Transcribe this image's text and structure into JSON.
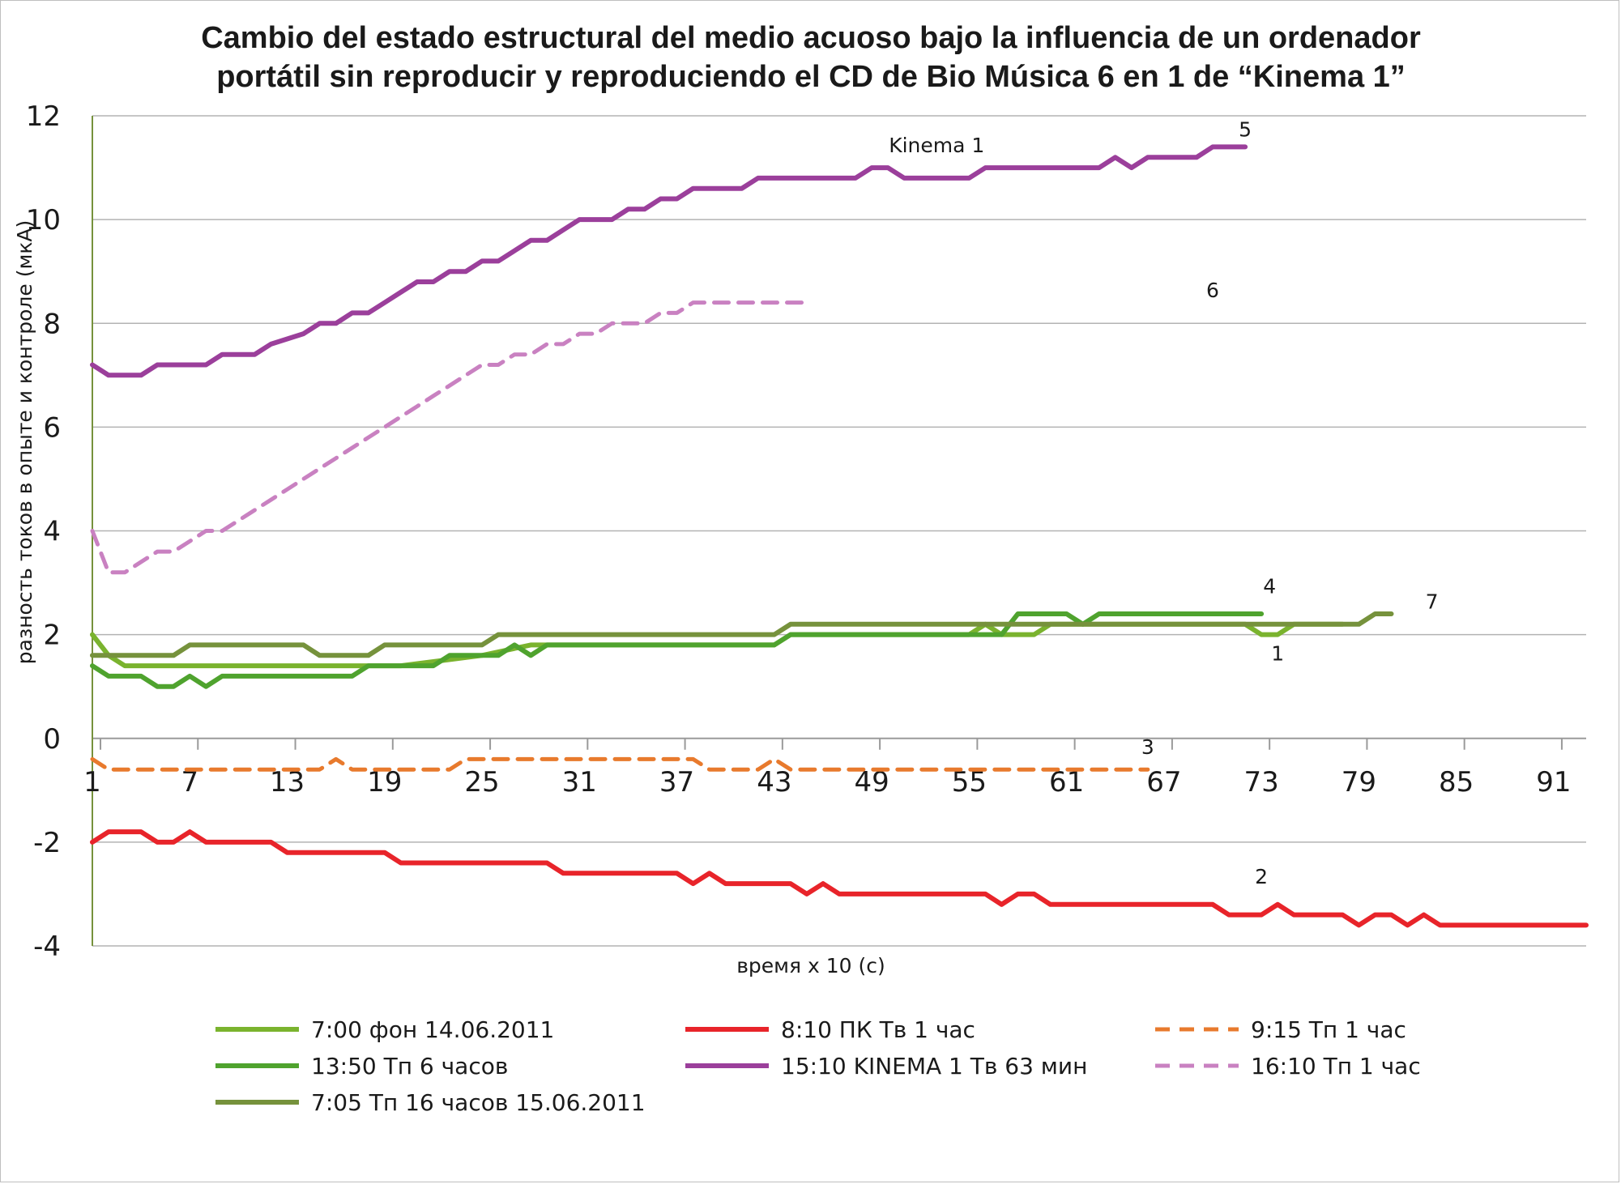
{
  "chart_data": {
    "type": "line",
    "title": "Cambio del estado estructural del medio acuoso bajo la influencia de un ordenador",
    "title_line2": "portátil sin reproducir y reproduciendo el CD de Bio Música 6 en 1 de “Kinema 1”",
    "xlabel": "время х 10 (с)",
    "ylabel": "разность токов в опыте и контроле (мкА)",
    "x_range": [
      1,
      93
    ],
    "x_ticks": [
      "1",
      "7",
      "13",
      "19",
      "25",
      "31",
      "37",
      "43",
      "49",
      "55",
      "61",
      "67",
      "73",
      "79",
      "85",
      "91"
    ],
    "y_range": [
      -4,
      12
    ],
    "y_ticks": [
      "12",
      "10",
      "8",
      "6",
      "4",
      "2",
      "0",
      "-2",
      "-4"
    ],
    "gridlines": true,
    "legend_position": "bottom",
    "series": [
      {
        "name": "7:00 фон 14.06.2011",
        "color": "#7ab32e",
        "dash": "solid",
        "points": [
          [
            1,
            2.0
          ],
          [
            2,
            1.6
          ],
          [
            3,
            1.4
          ],
          [
            5,
            1.4
          ],
          [
            10,
            1.4
          ],
          [
            20,
            1.4
          ],
          [
            25,
            1.6
          ],
          [
            28,
            1.8
          ],
          [
            30,
            1.8
          ],
          [
            35,
            1.8
          ],
          [
            43,
            1.8
          ],
          [
            44,
            2.0
          ],
          [
            50,
            2.0
          ],
          [
            55,
            2.0
          ],
          [
            56,
            2.2
          ],
          [
            57,
            2.0
          ],
          [
            59,
            2.0
          ],
          [
            60,
            2.2
          ],
          [
            70,
            2.2
          ],
          [
            72,
            2.2
          ],
          [
            73,
            2.0
          ],
          [
            74,
            2.0
          ],
          [
            75,
            2.2
          ],
          [
            78,
            2.2
          ]
        ]
      },
      {
        "name": "8:10 ПК Тв 1 час",
        "color": "#e8242a",
        "dash": "solid",
        "points": [
          [
            1,
            -2.0
          ],
          [
            2,
            -1.8
          ],
          [
            3,
            -1.8
          ],
          [
            4,
            -1.8
          ],
          [
            5,
            -2.0
          ],
          [
            6,
            -2.0
          ],
          [
            7,
            -1.8
          ],
          [
            8,
            -2.0
          ],
          [
            12,
            -2.0
          ],
          [
            13,
            -2.2
          ],
          [
            19,
            -2.2
          ],
          [
            20,
            -2.4
          ],
          [
            29,
            -2.4
          ],
          [
            30,
            -2.6
          ],
          [
            37,
            -2.6
          ],
          [
            38,
            -2.8
          ],
          [
            39,
            -2.6
          ],
          [
            40,
            -2.8
          ],
          [
            44,
            -2.8
          ],
          [
            45,
            -3.0
          ],
          [
            46,
            -2.8
          ],
          [
            47,
            -3.0
          ],
          [
            50,
            -3.0
          ],
          [
            56,
            -3.0
          ],
          [
            57,
            -3.2
          ],
          [
            58,
            -3.0
          ],
          [
            59,
            -3.0
          ],
          [
            60,
            -3.2
          ],
          [
            70,
            -3.2
          ],
          [
            71,
            -3.4
          ],
          [
            73,
            -3.4
          ],
          [
            74,
            -3.2
          ],
          [
            75,
            -3.4
          ],
          [
            77,
            -3.4
          ],
          [
            78,
            -3.4
          ],
          [
            79,
            -3.6
          ],
          [
            80,
            -3.4
          ],
          [
            81,
            -3.4
          ],
          [
            82,
            -3.6
          ],
          [
            83,
            -3.4
          ],
          [
            84,
            -3.6
          ],
          [
            86,
            -3.6
          ],
          [
            93,
            -3.6
          ]
        ]
      },
      {
        "name": "9:15 Тп 1 час",
        "color": "#e87a2d",
        "dash": "dashed",
        "points": [
          [
            1,
            -0.4
          ],
          [
            2,
            -0.6
          ],
          [
            15,
            -0.6
          ],
          [
            16,
            -0.4
          ],
          [
            17,
            -0.6
          ],
          [
            23,
            -0.6
          ],
          [
            24,
            -0.4
          ],
          [
            38,
            -0.4
          ],
          [
            39,
            -0.6
          ],
          [
            42,
            -0.6
          ],
          [
            43,
            -0.4
          ],
          [
            44,
            -0.6
          ],
          [
            66,
            -0.6
          ]
        ]
      },
      {
        "name": "13:50 Тп 6 часов",
        "color": "#4fa32e",
        "dash": "solid",
        "points": [
          [
            1,
            1.4
          ],
          [
            2,
            1.2
          ],
          [
            4,
            1.2
          ],
          [
            5,
            1.0
          ],
          [
            6,
            1.0
          ],
          [
            7,
            1.2
          ],
          [
            8,
            1.0
          ],
          [
            9,
            1.2
          ],
          [
            17,
            1.2
          ],
          [
            18,
            1.4
          ],
          [
            22,
            1.4
          ],
          [
            23,
            1.6
          ],
          [
            26,
            1.6
          ],
          [
            27,
            1.8
          ],
          [
            28,
            1.6
          ],
          [
            29,
            1.8
          ],
          [
            30,
            1.8
          ],
          [
            43,
            1.8
          ],
          [
            44,
            2.0
          ],
          [
            57,
            2.0
          ],
          [
            58,
            2.4
          ],
          [
            61,
            2.4
          ],
          [
            62,
            2.2
          ],
          [
            63,
            2.4
          ],
          [
            73,
            2.4
          ]
        ]
      },
      {
        "name": "15:10 KINEMA 1 Тв 63 мин",
        "color": "#9b3f9b",
        "dash": "solid",
        "points": [
          [
            1,
            7.2
          ],
          [
            2,
            7.0
          ],
          [
            4,
            7.0
          ],
          [
            5,
            7.2
          ],
          [
            8,
            7.2
          ],
          [
            9,
            7.4
          ],
          [
            11,
            7.4
          ],
          [
            12,
            7.6
          ],
          [
            14,
            7.8
          ],
          [
            15,
            8.0
          ],
          [
            16,
            8.0
          ],
          [
            17,
            8.2
          ],
          [
            18,
            8.2
          ],
          [
            19,
            8.4
          ],
          [
            20,
            8.6
          ],
          [
            21,
            8.8
          ],
          [
            22,
            8.8
          ],
          [
            23,
            9.0
          ],
          [
            24,
            9.0
          ],
          [
            25,
            9.2
          ],
          [
            26,
            9.2
          ],
          [
            27,
            9.4
          ],
          [
            28,
            9.6
          ],
          [
            29,
            9.6
          ],
          [
            30,
            9.8
          ],
          [
            31,
            10.0
          ],
          [
            32,
            10.0
          ],
          [
            33,
            10.0
          ],
          [
            34,
            10.2
          ],
          [
            35,
            10.2
          ],
          [
            36,
            10.4
          ],
          [
            37,
            10.4
          ],
          [
            38,
            10.6
          ],
          [
            41,
            10.6
          ],
          [
            42,
            10.8
          ],
          [
            47,
            10.8
          ],
          [
            48,
            10.8
          ],
          [
            49,
            11.0
          ],
          [
            50,
            11.0
          ],
          [
            51,
            10.8
          ],
          [
            54,
            10.8
          ],
          [
            55,
            10.8
          ],
          [
            56,
            11.0
          ],
          [
            62,
            11.0
          ],
          [
            63,
            11.0
          ],
          [
            64,
            11.2
          ],
          [
            65,
            11.0
          ],
          [
            66,
            11.2
          ],
          [
            69,
            11.2
          ],
          [
            70,
            11.4
          ],
          [
            72,
            11.4
          ]
        ]
      },
      {
        "name": "16:10 Тп 1 час",
        "color": "#c981c1",
        "dash": "dashed",
        "points": [
          [
            1,
            4.0
          ],
          [
            2,
            3.2
          ],
          [
            3,
            3.2
          ],
          [
            4,
            3.4
          ],
          [
            5,
            3.6
          ],
          [
            6,
            3.6
          ],
          [
            7,
            3.8
          ],
          [
            8,
            4.0
          ],
          [
            9,
            4.0
          ],
          [
            10,
            4.2
          ],
          [
            11,
            4.4
          ],
          [
            12,
            4.6
          ],
          [
            13,
            4.8
          ],
          [
            14,
            5.0
          ],
          [
            15,
            5.2
          ],
          [
            16,
            5.4
          ],
          [
            17,
            5.6
          ],
          [
            18,
            5.8
          ],
          [
            19,
            6.0
          ],
          [
            20,
            6.2
          ],
          [
            21,
            6.4
          ],
          [
            22,
            6.6
          ],
          [
            23,
            6.8
          ],
          [
            24,
            7.0
          ],
          [
            25,
            7.2
          ],
          [
            26,
            7.2
          ],
          [
            27,
            7.4
          ],
          [
            28,
            7.4
          ],
          [
            29,
            7.6
          ],
          [
            30,
            7.6
          ],
          [
            31,
            7.8
          ],
          [
            32,
            7.8
          ],
          [
            33,
            8.0
          ],
          [
            34,
            8.0
          ],
          [
            35,
            8.0
          ],
          [
            36,
            8.2
          ],
          [
            37,
            8.2
          ],
          [
            38,
            8.4
          ],
          [
            45,
            8.4
          ]
        ]
      },
      {
        "name": "7:05  Тп 16 часов  15.06.2011",
        "color": "#76923c",
        "dash": "solid",
        "points": [
          [
            1,
            1.6
          ],
          [
            6,
            1.6
          ],
          [
            7,
            1.8
          ],
          [
            14,
            1.8
          ],
          [
            15,
            1.6
          ],
          [
            18,
            1.6
          ],
          [
            19,
            1.8
          ],
          [
            25,
            1.8
          ],
          [
            26,
            2.0
          ],
          [
            43,
            2.0
          ],
          [
            44,
            2.2
          ],
          [
            79,
            2.2
          ],
          [
            80,
            2.4
          ],
          [
            81,
            2.4
          ]
        ]
      }
    ],
    "annotations": [
      {
        "text": "Kinema 1",
        "x": 53,
        "y": 11.3
      },
      {
        "text": "5",
        "x": 72,
        "y": 11.6
      },
      {
        "text": "6",
        "x": 70,
        "y": 8.5
      },
      {
        "text": "4",
        "x": 73.5,
        "y": 2.8
      },
      {
        "text": "7",
        "x": 83.5,
        "y": 2.5
      },
      {
        "text": "1",
        "x": 74,
        "y": 1.5
      },
      {
        "text": "3",
        "x": 66,
        "y": -0.3
      },
      {
        "text": "2",
        "x": 73,
        "y": -2.8
      }
    ]
  }
}
